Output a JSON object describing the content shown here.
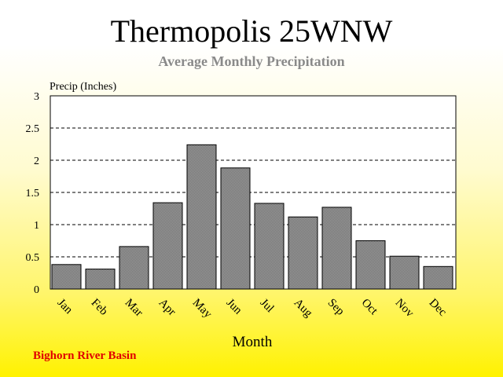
{
  "header": {
    "title": "Thermopolis 25WNW",
    "subtitle": "Average Monthly Precipitation"
  },
  "footer": {
    "label": "Bighorn River Basin"
  },
  "colors": {
    "bar": "#808080",
    "footer": "#e00000",
    "subtitle": "#8a8a8a"
  },
  "chart_data": {
    "type": "bar",
    "title": "Thermopolis 25WNW",
    "subtitle": "Average Monthly Precipitation",
    "xlabel": "Month",
    "ylabel": "Precip (Inches)",
    "categories": [
      "Jan",
      "Feb",
      "Mar",
      "Apr",
      "May",
      "Jun",
      "Jul",
      "Aug",
      "Sep",
      "Oct",
      "Nov",
      "Dec"
    ],
    "values": [
      0.38,
      0.31,
      0.66,
      1.34,
      2.24,
      1.88,
      1.33,
      1.12,
      1.27,
      0.75,
      0.51,
      0.35
    ],
    "ylim": [
      0,
      3
    ],
    "yticks": [
      "0",
      "0.5",
      "1",
      "1.5",
      "2",
      "2.5",
      "3"
    ],
    "grid": "horizontal dashed",
    "legend": "none"
  }
}
